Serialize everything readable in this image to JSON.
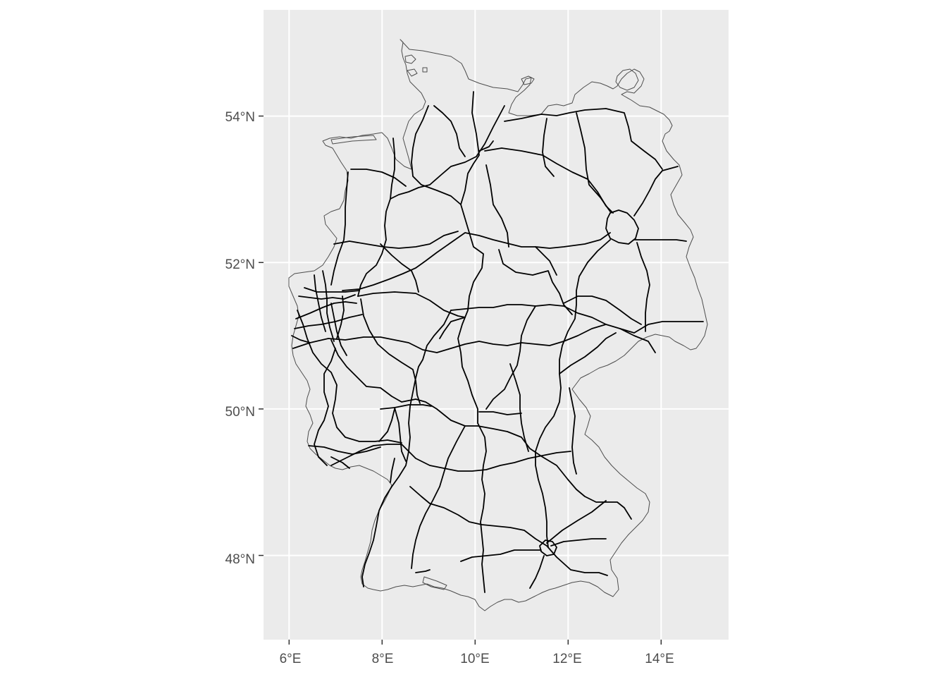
{
  "map": {
    "type": "geographic-map",
    "projection": "ggplot2 geom_sf with graticule (equirectangular aspect)",
    "panel_background": "#ebebeb",
    "grid_color": "#ffffff",
    "outline_color": "#4d4d4d",
    "road_color": "#000000",
    "x_axis": {
      "range": [
        5.45,
        15.45
      ],
      "ticks": [
        6,
        8,
        10,
        12,
        14
      ],
      "tick_labels": [
        "6°E",
        "8°E",
        "10°E",
        "12°E",
        "14°E"
      ]
    },
    "y_axis": {
      "range": [
        46.85,
        55.45
      ],
      "ticks": [
        48,
        50,
        52,
        54
      ],
      "tick_labels": [
        "48°N",
        "50°N",
        "52°N",
        "54°N"
      ]
    },
    "layers": [
      {
        "name": "country-outline",
        "type": "polygon"
      },
      {
        "name": "motorway-network",
        "type": "lines"
      }
    ]
  }
}
